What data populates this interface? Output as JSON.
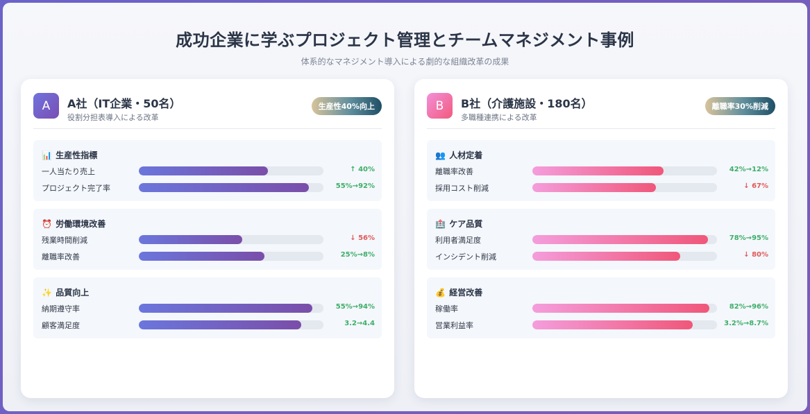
{
  "header": {
    "title": "成功企業に学ぶプロジェクト管理とチームマネジメント事例",
    "subtitle": "体系的なマネジメント導入による劇的な組織改革の成果"
  },
  "companies": [
    {
      "letter": "A",
      "name": "A社（IT企業・50名）",
      "description": "役割分担表導入による改革",
      "badge": "生産性40%向上",
      "sections": [
        {
          "icon": "📊",
          "icon_name": "bar-chart-icon",
          "title": "生産性指標",
          "metrics": [
            {
              "label": "一人当たり売上",
              "value": "↑ 40%",
              "trend": "up",
              "level": 0.7
            },
            {
              "label": "プロジェクト完了率",
              "value": "55%→92%",
              "trend": "up",
              "level": 0.92
            }
          ]
        },
        {
          "icon": "⏰",
          "icon_name": "alarm-clock-icon",
          "title": "労働環境改善",
          "metrics": [
            {
              "label": "残業時間削減",
              "value": "↓ 56%",
              "trend": "down",
              "level": 0.56
            },
            {
              "label": "離職率改善",
              "value": "25%→8%",
              "trend": "up",
              "level": 0.68
            }
          ]
        },
        {
          "icon": "✨",
          "icon_name": "sparkles-icon",
          "title": "品質向上",
          "metrics": [
            {
              "label": "納期遵守率",
              "value": "55%→94%",
              "trend": "up",
              "level": 0.94
            },
            {
              "label": "顧客満足度",
              "value": "3.2→4.4",
              "trend": "up",
              "level": 0.88
            }
          ]
        }
      ]
    },
    {
      "letter": "B",
      "name": "B社（介護施設・180名）",
      "description": "多職種連携による改革",
      "badge": "離職率30%削減",
      "sections": [
        {
          "icon": "👥",
          "icon_name": "people-icon",
          "title": "人材定着",
          "metrics": [
            {
              "label": "離職率改善",
              "value": "42%→12%",
              "trend": "up",
              "level": 0.71
            },
            {
              "label": "採用コスト削減",
              "value": "↓ 67%",
              "trend": "down",
              "level": 0.67
            }
          ]
        },
        {
          "icon": "🏥",
          "icon_name": "hospital-icon",
          "title": "ケア品質",
          "metrics": [
            {
              "label": "利用者満足度",
              "value": "78%→95%",
              "trend": "up",
              "level": 0.95
            },
            {
              "label": "インシデント削減",
              "value": "↓ 80%",
              "trend": "down",
              "level": 0.8
            }
          ]
        },
        {
          "icon": "💰",
          "icon_name": "money-bag-icon",
          "title": "経営改善",
          "metrics": [
            {
              "label": "稼働率",
              "value": "82%→96%",
              "trend": "up",
              "level": 0.96
            },
            {
              "label": "営業利益率",
              "value": "3.2%→8.7%",
              "trend": "up",
              "level": 0.87
            }
          ]
        }
      ]
    }
  ]
}
